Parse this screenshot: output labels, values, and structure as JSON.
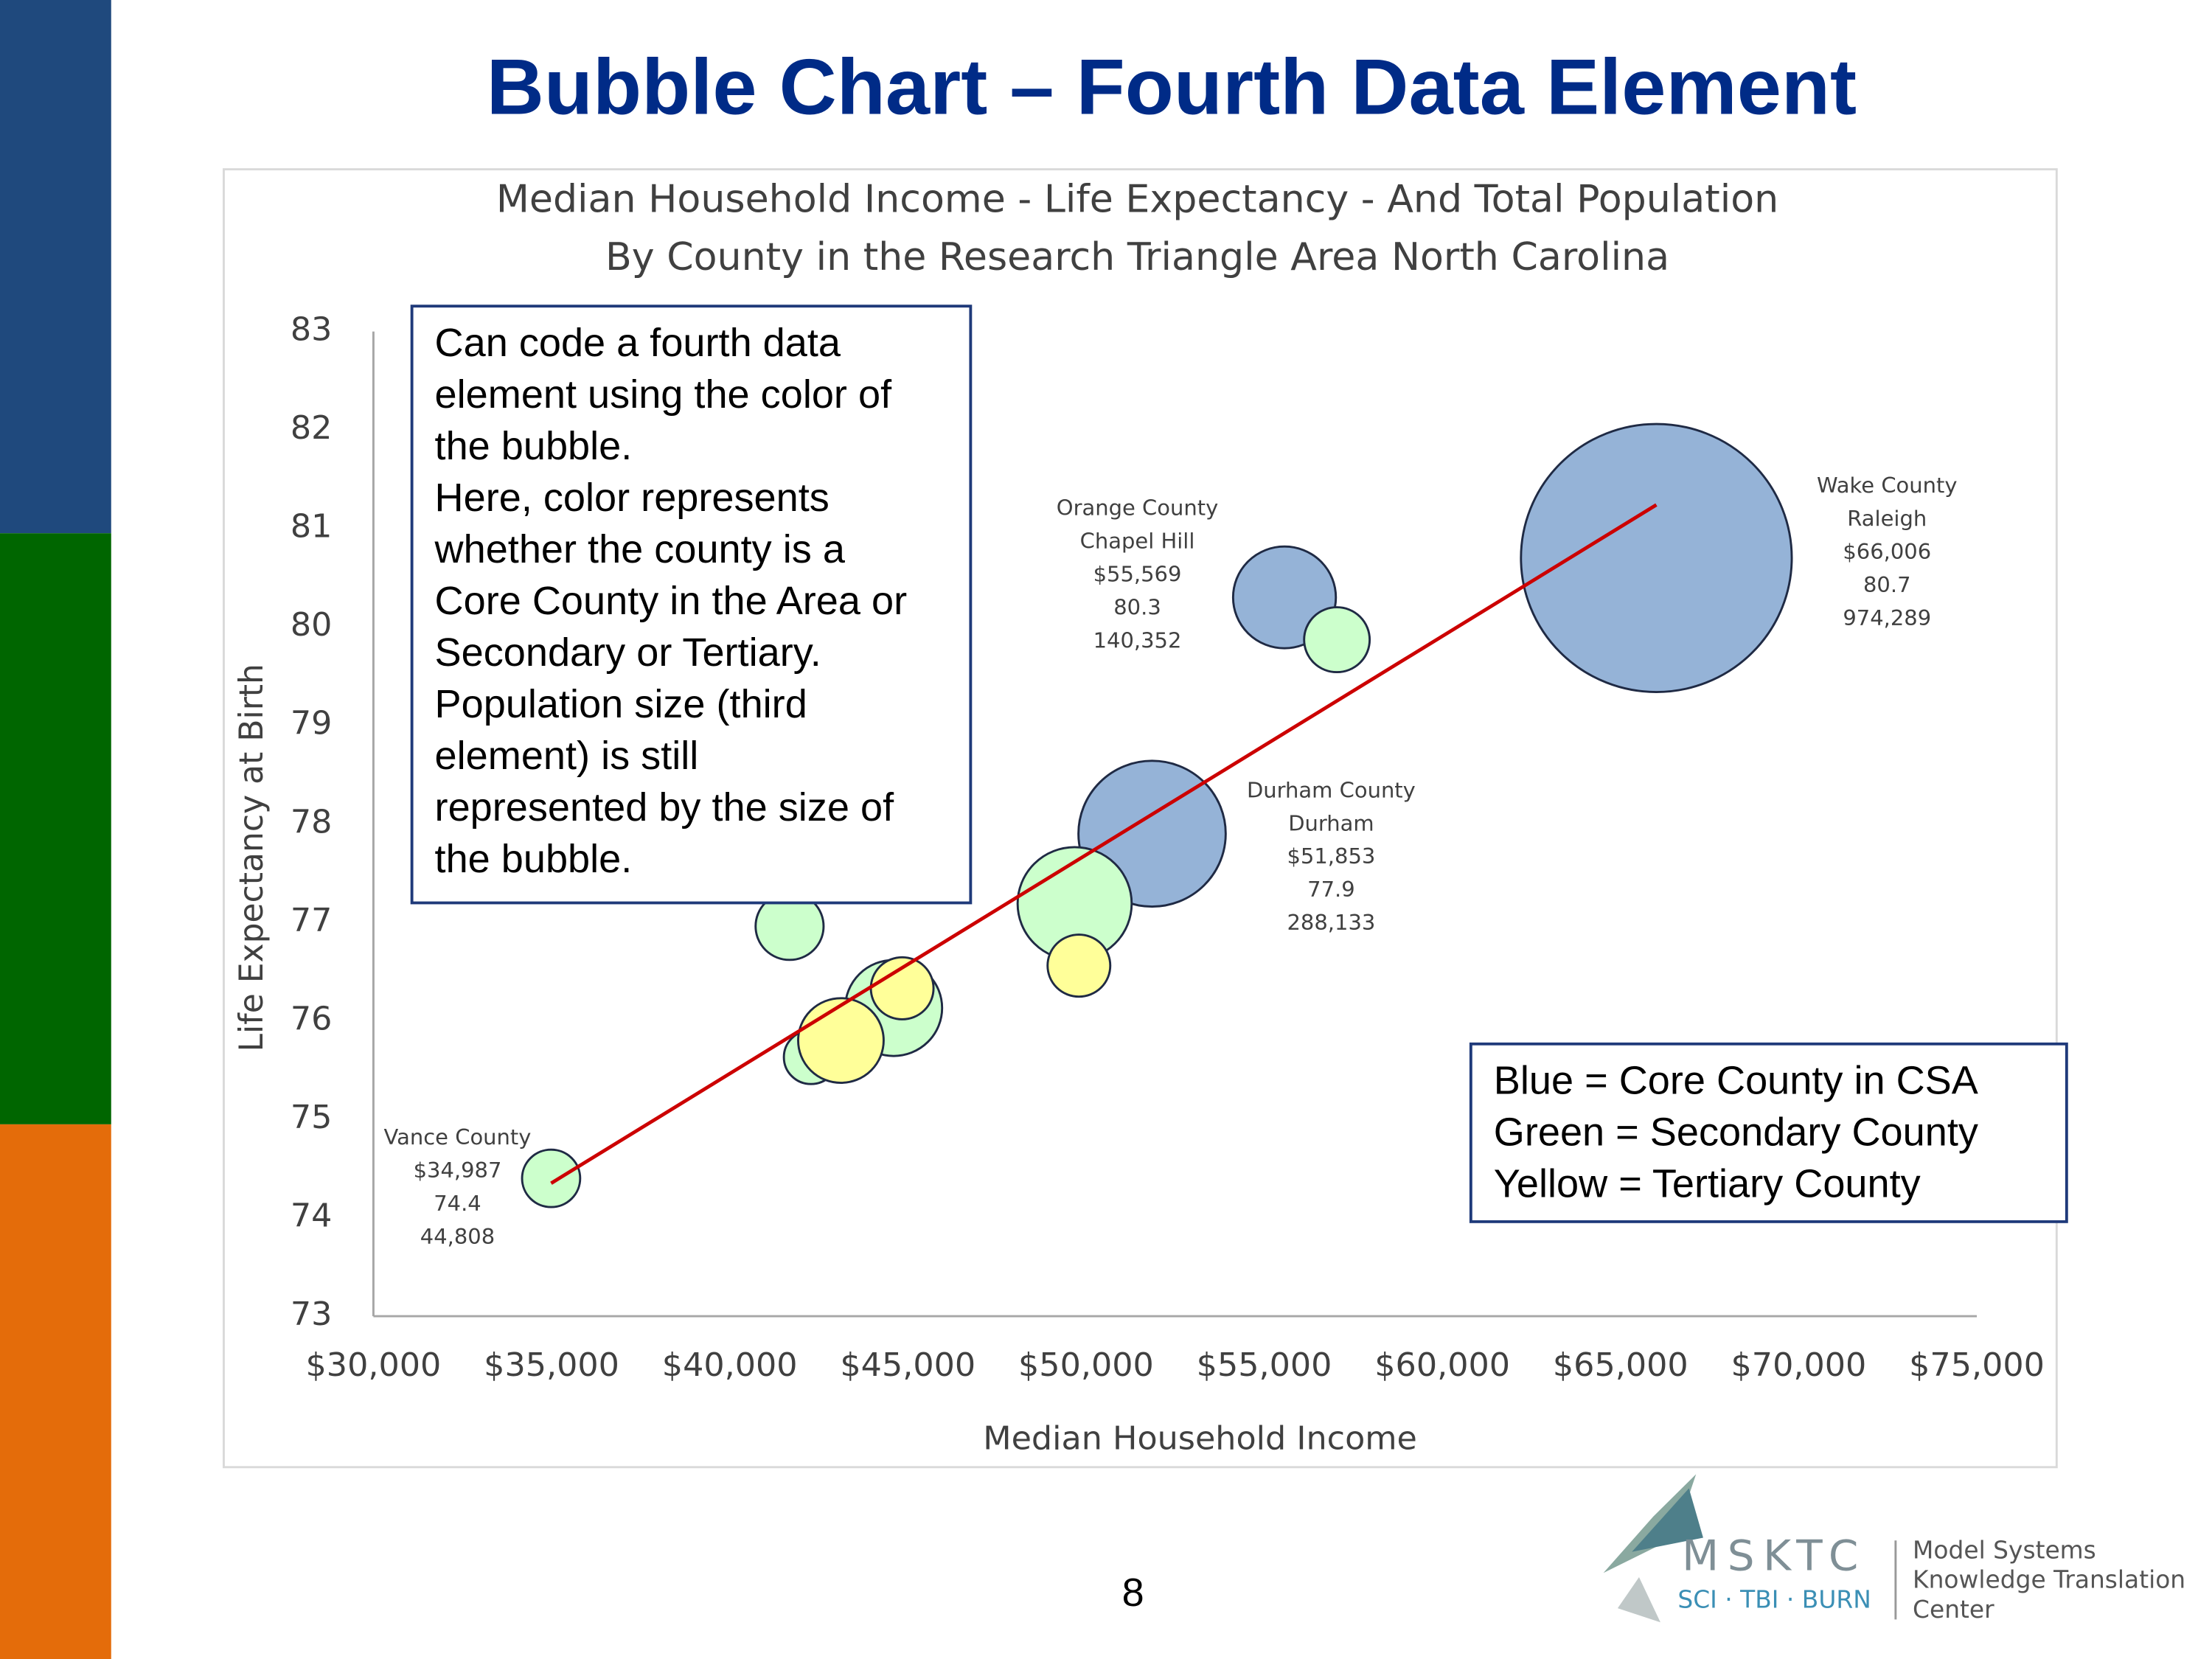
{
  "slide": {
    "title": "Bubble Chart – Fourth Data Element",
    "page_number": "8"
  },
  "chart_data": {
    "type": "bubble",
    "title": [
      "Median Household Income - Life Expectancy - And Total Population",
      "By County in the Research Triangle Area North Carolina"
    ],
    "xlabel": "Median Household Income",
    "ylabel": "Life Expectancy at Birth",
    "xlim": [
      30000,
      75000
    ],
    "ylim": [
      73,
      83
    ],
    "xticks": [
      {
        "value": 30000,
        "label": "$30,000"
      },
      {
        "value": 35000,
        "label": "$35,000"
      },
      {
        "value": 40000,
        "label": "$40,000"
      },
      {
        "value": 45000,
        "label": "$45,000"
      },
      {
        "value": 50000,
        "label": "$50,000"
      },
      {
        "value": 55000,
        "label": "$55,000"
      },
      {
        "value": 60000,
        "label": "$60,000"
      },
      {
        "value": 65000,
        "label": "$65,000"
      },
      {
        "value": 70000,
        "label": "$70,000"
      },
      {
        "value": 75000,
        "label": "$75,000"
      }
    ],
    "yticks": [
      73,
      74,
      75,
      76,
      77,
      78,
      79,
      80,
      81,
      82,
      83
    ],
    "series": [
      {
        "color": "#95b3d7",
        "x": [
          55569,
          51853,
          66006
        ],
        "values": [
          80.3,
          77.9,
          80.7
        ],
        "sizes": [
          140352,
          288133,
          974289
        ],
        "point_labels": [
          [
            "Orange County",
            "Chapel Hill",
            "$55,569",
            "80.3",
            "140,352"
          ],
          [
            "Durham County",
            "Durham",
            "$51,853",
            "77.9",
            "288,133"
          ],
          [
            "Wake County",
            "Raleigh",
            "$66,006",
            "80.7",
            "974,289"
          ]
        ]
      },
      {
        "color": "#ccffcc",
        "x": [
          34987,
          57040,
          41680,
          49680,
          44600,
          42280
        ],
        "values": [
          74.4,
          79.87,
          76.96,
          77.19,
          76.13,
          75.63
        ],
        "sizes": [
          44808,
          57100,
          61400,
          172800,
          124800,
          39000
        ],
        "point_labels": [
          [
            "Vance County",
            "$34,987",
            "74.4",
            "44,808"
          ],
          null,
          null,
          null,
          null,
          null
        ]
      },
      {
        "color": "#ffff99",
        "x": [
          49800,
          44840,
          43120
        ],
        "values": [
          76.56,
          76.33,
          75.8
        ],
        "sizes": [
          52200,
          52200,
          97100
        ],
        "point_labels": [
          null,
          null,
          null
        ]
      }
    ],
    "trendline": {
      "color": "#cc0000",
      "x": [
        34987,
        66006
      ],
      "values": [
        74.35,
        81.24
      ]
    },
    "annotations": [
      {
        "lines": [
          "Can code a fourth data",
          "element using the color of",
          "the bubble.",
          "Here, color represents",
          "whether the county is a",
          "Core County in the Area or",
          "Secondary or Tertiary.",
          "Population size (third",
          "element) is still",
          "represented by the size of",
          "the bubble."
        ]
      },
      {
        "lines": [
          "Blue = Core County in CSA",
          "Green = Secondary County",
          "Yellow = Tertiary County"
        ]
      }
    ]
  },
  "logo": {
    "name": "MSKTC",
    "programs": "SCI · TBI · BURN",
    "org": [
      "Model Systems",
      "Knowledge Translation",
      "Center"
    ]
  }
}
